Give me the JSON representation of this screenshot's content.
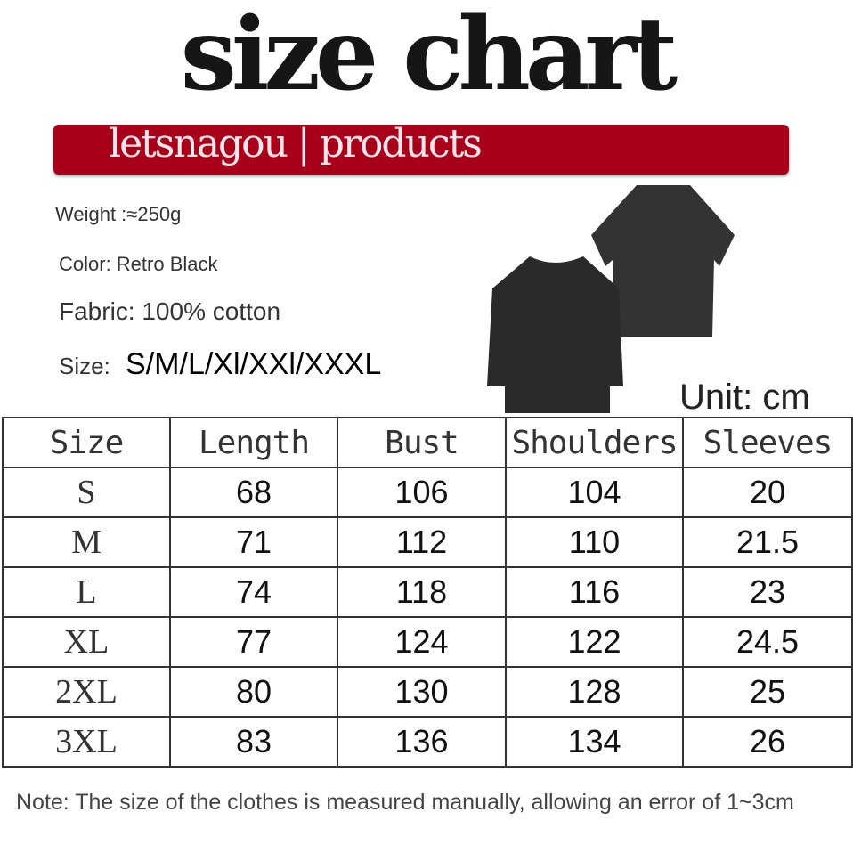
{
  "title": "size chart",
  "banner": "letsnagou | products",
  "specs": {
    "weight": "Weight :≈250g",
    "color": "Color: Retro Black",
    "fabric": "Fabric: 100% cotton",
    "size_label": "Size:",
    "size_values": "S/M/L/Xl/XXl/XXXL"
  },
  "unit": "Unit: cm",
  "table": {
    "headers": [
      "Size",
      "Length",
      "Bust",
      "Shoulders",
      "Sleeves"
    ],
    "rows": [
      [
        "S",
        "68",
        "106",
        "104",
        "20"
      ],
      [
        "M",
        "71",
        "112",
        "110",
        "21.5"
      ],
      [
        "L",
        "74",
        "118",
        "116",
        "23"
      ],
      [
        "XL",
        "77",
        "124",
        "122",
        "24.5"
      ],
      [
        "2XL",
        "80",
        "130",
        "128",
        "25"
      ],
      [
        "3XL",
        "83",
        "136",
        "134",
        "26"
      ]
    ]
  },
  "note": "Note: The size of the clothes is measured manually, allowing an error of 1~3cm",
  "colors": {
    "banner": "#a8001a",
    "shirt": "#2e2e2e"
  }
}
